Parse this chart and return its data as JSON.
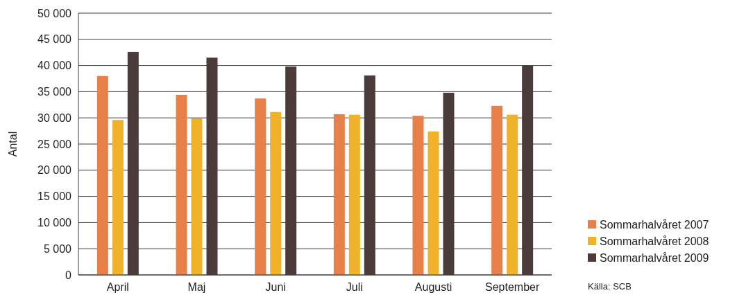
{
  "chart_data": {
    "type": "bar",
    "ylabel": "Antal",
    "categories": [
      "April",
      "Maj",
      "Juni",
      "Juli",
      "Augusti",
      "September"
    ],
    "series": [
      {
        "name": "Sommarhalvåret 2007",
        "color": "#e8804a",
        "values": [
          38000,
          34400,
          33700,
          30700,
          30400,
          32300
        ]
      },
      {
        "name": "Sommarhalvåret 2008",
        "color": "#f0b22a",
        "values": [
          29600,
          29900,
          31100,
          30600,
          27400,
          30600
        ]
      },
      {
        "name": "Sommarhalvåret 2009",
        "color": "#4b3b3a",
        "values": [
          42600,
          41500,
          39800,
          38100,
          34800,
          40000
        ]
      }
    ],
    "ylim": [
      0,
      50000
    ],
    "yticks": [
      0,
      {
        "value": 5000,
        "label": "5 000"
      },
      {
        "value": 10000,
        "label": "10 000"
      },
      {
        "value": 15000,
        "label": "15 000"
      },
      {
        "value": 20000,
        "label": "20 000"
      },
      {
        "value": 25000,
        "label": "25 000"
      },
      {
        "value": 30000,
        "label": "30 000"
      },
      {
        "value": 35000,
        "label": "35 000"
      },
      {
        "value": 40000,
        "label": "40 000"
      },
      {
        "value": 45000,
        "label": "45 000"
      },
      {
        "value": 50000,
        "label": "50 000"
      }
    ],
    "grid": "y",
    "legend": "bottom right",
    "annotations": [
      "Källa: SCB"
    ]
  }
}
